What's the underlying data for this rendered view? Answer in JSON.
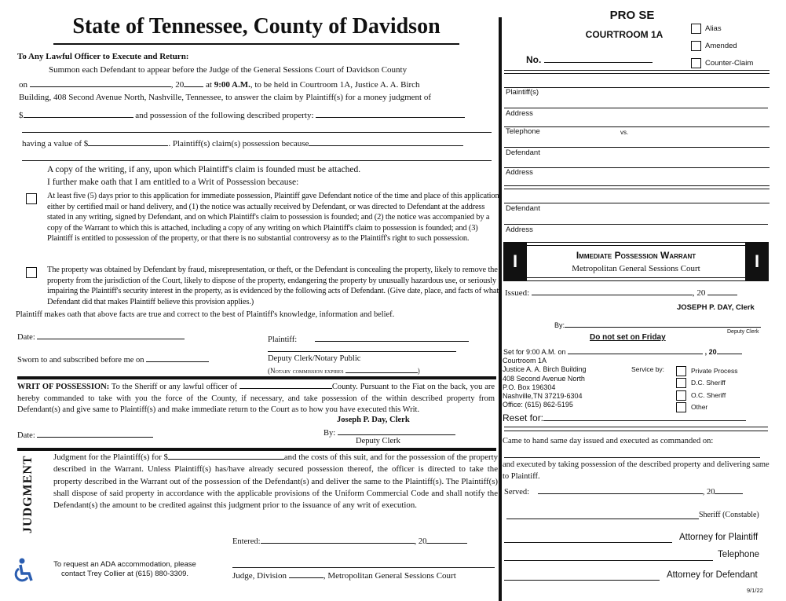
{
  "title": "State of  Tennessee, County of Davidson",
  "summons": {
    "heading": "To Any Lawful Officer to Execute and Return:",
    "line1": "Summon each Defendant to appear before the Judge of the General Sessions Court of Davidson County",
    "on": "on",
    "year": ", 20",
    "at": "at",
    "time": "9:00 A.M.",
    "held": ", to be held in Courtroom 1A, Justice A. A. Birch",
    "line3": "Building, 408 Second Avenue North, Nashville, Tennessee, to answer the claim by Plaintiff(s) for a money judgment of",
    "dollar": "$",
    "possession": "and possession of the following described property:",
    "value": "having a value of $",
    "because": ". Plaintiff(s) claim(s) possession because",
    "copy": "A copy of the writing, if any, upon which Plaintiff's claim is founded must be attached.",
    "oath": "I further make oath that I am entitled to a Writ of Possession because:",
    "option1": "At least five (5) days prior to this application for immediate possession, Plaintiff gave Defendant notice of the time and place of this application either by certified mail or hand delivery, and (1) the notice was actually received by Defendant, or was directed to Defendant at the address stated in any writing, signed by Defendant, and on which Plaintiff's claim to possession is founded; and (2) the notice was accompanied by a copy of the Warrant to which this is attached, including a copy of any writing on which Plaintiff's claim to possession is founded; and (3) Plaintiff is entitled to possession of the property, or that there is no substantial controversy as to the Plaintiff's right to such possession.",
    "option2": "The property was obtained by Defendant by fraud, misrepresentation, or theft, or the Defendant is concealing the property, likely to remove the property from the jurisdiction of the Court, likely to dispose of the property, endangering the property by unusually hazardous use, or seriously impairing the Plaintiff's security interest in the property, as is evidenced by the following acts of Defendant. (Give date, place, and facts of what Defendant did that makes Plaintiff believe this provision applies.)",
    "truth": "Plaintiff makes oath that above facts are true and correct to the best of Plaintiff's knowledge, information and belief.",
    "date": "Date:",
    "plaintiff": "Plaintiff:",
    "sworn": "Sworn to and subscribed before me on",
    "deputy_notary": "Deputy Clerk/Notary Public",
    "notary_expires": "(Notary commission expires",
    "close_paren": ")"
  },
  "writ": {
    "label": "WRIT OF POSSESSION:",
    "text1": "To the Sheriff or any lawful officer of",
    "text2": "County. Pursuant to the Fiat on the back, you are hereby commanded to take with you the force of the County, if necessary, and take possession of the within described property from Defendant(s) and give same to Plaintiff(s) and make immediate return to the Court as to how you have executed this Writ.",
    "clerk": "Joseph P. Day, Clerk",
    "by": "By:",
    "deputy": "Deputy Clerk",
    "date": "Date:"
  },
  "judgment": {
    "label": "JUDGMENT",
    "text1": "Judgment for the Plaintiff(s) for $",
    "text2": "and the costs of this suit, and for the possession of the property described in the Warrant. Unless Plaintiff(s) has/have already secured possession thereof, the officer is directed to take the property described in the Warrant out of the possession of the Defendant(s) and deliver the same to the Plaintiff(s). The Plaintiff(s) shall dispose of said property in accordance with the applicable provisions of the Uniform Commercial Code and shall notify the Defendant(s) the amount to be credited against this judgment prior to the issuance of any writ of execution.",
    "entered": "Entered:",
    "year": ", 20",
    "judge": "Judge, Division",
    "court": ", Metropolitan General Sessions Court"
  },
  "ada": {
    "icon": "wheelchair-icon",
    "line1": "To request an ADA accommodation, please",
    "line2": "contact Trey Collier at (615) 880-3309.",
    "color": "#2a5db0"
  },
  "right": {
    "pro_se": "PRO SE",
    "courtroom": "COURTROOM 1A",
    "no": "No.",
    "checkboxes": [
      "Alias",
      "Amended",
      "Counter-Claim"
    ],
    "fields": [
      "Plaintiff(s)",
      "Address",
      "Telephone",
      "Defendant",
      "Address",
      "Defendant",
      "Address"
    ],
    "vs": "vs.",
    "warrant_title": "Immediate Possession Warrant",
    "warrant_sub": "Metropolitan General Sessions Court",
    "badge": "I",
    "issued": "Issued:",
    "year": ", 20",
    "clerk_name": "JOSEPH P. DAY,",
    "clerk_title": "Clerk",
    "by": "By:",
    "deputy": "Deputy Clerk",
    "friday": "Do not set on Friday",
    "set_for": "Set for 9:00  A.M. on",
    "set_year": ", 20",
    "address": [
      "Courtroom 1A",
      "Justice A. A. Birch Building",
      "408 Second Avenue North",
      "P.O. Box 196304",
      "Nashville,TN 37219-6304",
      "Office:  (615) 862-5195"
    ],
    "service_by": "Service by:",
    "service": [
      "Private Process",
      "D.C. Sheriff",
      "O.C. Sheriff",
      "Other"
    ],
    "reset": "Reset for:",
    "came": "Came to hand same day issued and executed as commanded on:",
    "executed": "and executed by taking possession of the described property and delivering same to Plaintiff.",
    "served": "Served:",
    "served_year": ", 20",
    "sheriff": "Sheriff (Constable)",
    "atty_plaintiff": "Attorney for Plaintiff",
    "telephone": "Telephone",
    "atty_defendant": "Attorney for Defendant",
    "version": "9/1/22"
  }
}
